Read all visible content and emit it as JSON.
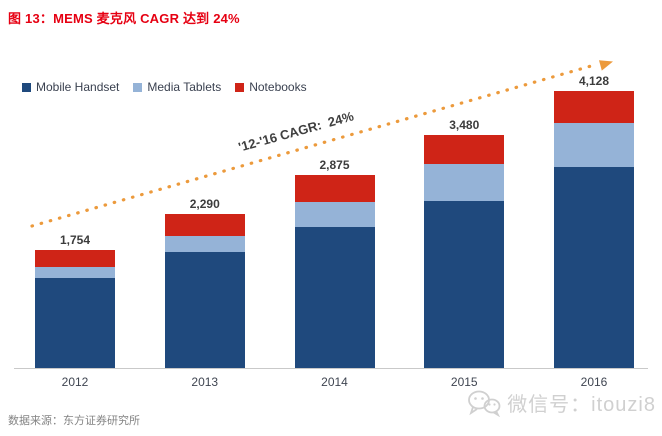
{
  "page": {
    "title": "图 13：MEMS 麦克风 CAGR 达到 24%",
    "title_color": "#E60012",
    "source_note": "数据来源：东方证券研究所",
    "watermark_text": "微信号：itouzi8",
    "watermark_icon": "wechat-icon"
  },
  "chart_data": {
    "type": "bar",
    "stacked": true,
    "categories": [
      "2012",
      "2013",
      "2014",
      "2015",
      "2016"
    ],
    "series": [
      {
        "name": "Mobile Handset",
        "color": "#1F497D",
        "values": [
          1338,
          1733,
          2096,
          2489,
          2996
        ]
      },
      {
        "name": "Media Tablets",
        "color": "#95B3D7",
        "values": [
          162,
          241,
          382,
          547,
          655
        ]
      },
      {
        "name": "Notebooks",
        "color": "#CF2417",
        "values": [
          254,
          316,
          397,
          444,
          477
        ]
      }
    ],
    "total_labels": [
      "1,754",
      "2,290",
      "2,875",
      "3,480",
      "4,128"
    ],
    "annotation": "'12-'16 CAGR:  24%",
    "trend_arrow_color": "#EC9A3C",
    "legend_position": "top-left",
    "gridlines": false,
    "ylim": [
      0,
      4500
    ]
  }
}
